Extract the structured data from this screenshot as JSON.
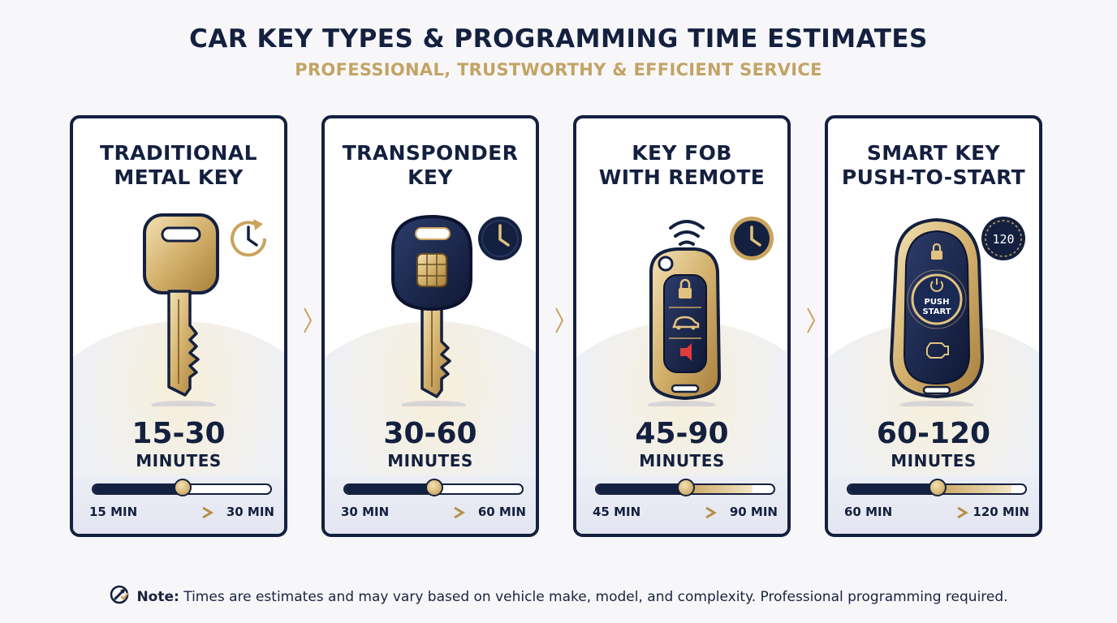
{
  "header": {
    "title": "CAR KEY TYPES & PROGRAMMING TIME ESTIMATES",
    "subtitle": "PROFESSIONAL, TRUSTWORTHY & EFFICIENT SERVICE"
  },
  "colors": {
    "navy": "#14203f",
    "gold": "#c3a465",
    "background": "#f7f7f9"
  },
  "cards": [
    {
      "title_line1": "TRADITIONAL",
      "title_line2": "METAL KEY",
      "icon": "metal-key-icon",
      "clock_icon": "clock-refresh-icon",
      "range": "15-30",
      "unit": "MINUTES",
      "min_label": "15 MIN",
      "max_label": "30 MIN",
      "level": 0.5
    },
    {
      "title_line1": "TRANSPONDER",
      "title_line2": "KEY",
      "icon": "transponder-key-icon",
      "clock_icon": "clock-icon",
      "range": "30-60",
      "unit": "MINUTES",
      "min_label": "30 MIN",
      "max_label": "60 MIN",
      "level": 0.5
    },
    {
      "title_line1": "KEY FOB",
      "title_line2": "WITH REMOTE",
      "icon": "key-fob-icon",
      "clock_icon": "clock-icon",
      "range": "45-90",
      "unit": "MINUTES",
      "min_label": "45 MIN",
      "max_label": "90 MIN",
      "level": 0.5,
      "button_icons": [
        "lock-icon",
        "car-trunk-icon",
        "alarm-icon"
      ]
    },
    {
      "title_line1": "SMART KEY",
      "title_line2": "PUSH-TO-START",
      "icon": "smart-key-icon",
      "clock_icon": "timer-display-icon",
      "clock_text": "120",
      "push_text_line1": "PUSH",
      "push_text_line2": "START",
      "range": "60-120",
      "unit": "MINUTES",
      "min_label": "60 MIN",
      "max_label": "120 MIN",
      "level": 0.5,
      "button_icons": [
        "lock-icon",
        "power-icon",
        "engine-icon"
      ]
    }
  ],
  "note": {
    "label": "Note:",
    "text": " Times are estimates and may vary based on vehicle make, model, and complexity. Professional programming required.",
    "icon": "wrench-check-icon"
  }
}
